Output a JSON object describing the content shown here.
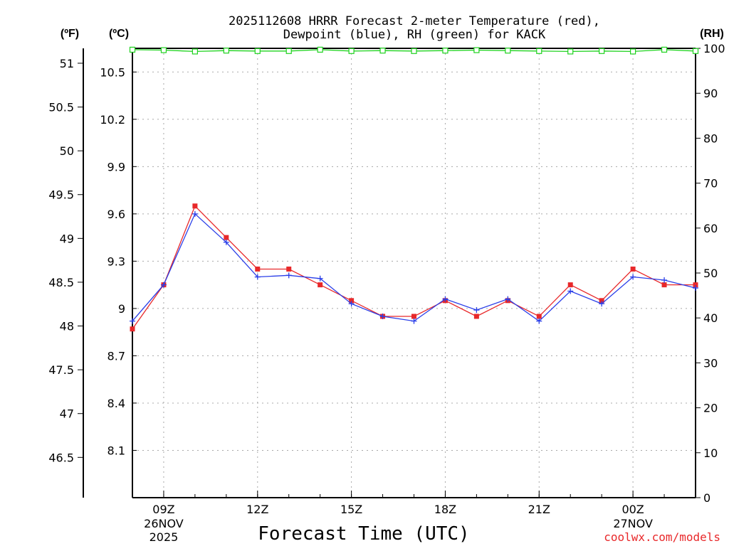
{
  "chart_data": {
    "type": "line",
    "title_line1": "2025112608 HRRR Forecast 2-meter Temperature (red),",
    "title_line2": "Dewpoint (blue), RH (green) for KACK",
    "left_unit_f": "(ºF)",
    "left_unit_c": "(ºC)",
    "right_unit": "(RH)",
    "xlabel": "Forecast Time (UTC)",
    "credit": "coolwx.com/models",
    "x_hours": [
      8,
      9,
      10,
      11,
      12,
      13,
      14,
      15,
      16,
      17,
      18,
      19,
      20,
      21,
      22,
      23,
      24,
      25,
      26
    ],
    "x_range": [
      8,
      26
    ],
    "x_ticks": [
      {
        "hour": 9,
        "label": "09Z",
        "date": "26NOV",
        "year": "2025"
      },
      {
        "hour": 12,
        "label": "12Z",
        "date": "",
        "year": ""
      },
      {
        "hour": 15,
        "label": "15Z",
        "date": "",
        "year": ""
      },
      {
        "hour": 18,
        "label": "18Z",
        "date": "",
        "year": ""
      },
      {
        "hour": 21,
        "label": "21Z",
        "date": "",
        "year": ""
      },
      {
        "hour": 24,
        "label": "00Z",
        "date": "27NOV",
        "year": ""
      }
    ],
    "celsius_range": [
      7.8,
      10.65
    ],
    "celsius_ticks": [
      "8.1",
      "8.4",
      "8.7",
      "9",
      "9.3",
      "9.6",
      "9.9",
      "10.2",
      "10.5"
    ],
    "fahrenheit_ticks": [
      "46.5",
      "47",
      "47.5",
      "48",
      "48.5",
      "49",
      "49.5",
      "50",
      "50.5",
      "51"
    ],
    "rh_range": [
      0,
      100
    ],
    "rh_ticks": [
      "0",
      "10",
      "20",
      "30",
      "40",
      "50",
      "60",
      "70",
      "80",
      "90",
      "100"
    ],
    "series": [
      {
        "name": "Temperature",
        "unit": "C",
        "color": "#e8282a",
        "marker": "square",
        "values": [
          8.87,
          9.15,
          9.65,
          9.45,
          9.25,
          9.25,
          9.15,
          9.05,
          8.95,
          8.95,
          9.05,
          8.95,
          9.05,
          8.95,
          9.15,
          9.05,
          9.25,
          9.15,
          9.15
        ]
      },
      {
        "name": "Dewpoint",
        "unit": "C",
        "color": "#2a3ee8",
        "marker": "plus",
        "values": [
          8.92,
          9.15,
          9.6,
          9.42,
          9.2,
          9.21,
          9.19,
          9.03,
          8.95,
          8.92,
          9.06,
          8.99,
          9.06,
          8.92,
          9.11,
          9.03,
          9.2,
          9.18,
          9.13
        ]
      },
      {
        "name": "RH",
        "unit": "%",
        "color": "#1fd21f",
        "marker": "square-open",
        "values": [
          99.7,
          99.6,
          99.3,
          99.5,
          99.4,
          99.4,
          99.7,
          99.4,
          99.5,
          99.4,
          99.5,
          99.6,
          99.5,
          99.4,
          99.3,
          99.4,
          99.3,
          99.7,
          99.4
        ]
      }
    ]
  }
}
